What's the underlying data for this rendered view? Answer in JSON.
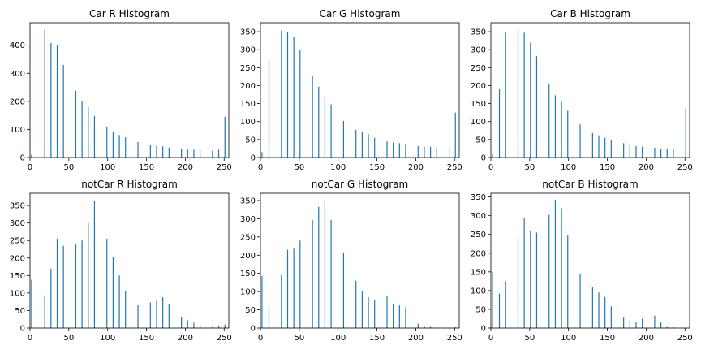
{
  "figure": {
    "bar_color": "#1f77b4",
    "axis_color": "#000000",
    "background": "#ffffff"
  },
  "chart_data": [
    {
      "type": "bar",
      "title": "Car R Histogram",
      "xlabel": "",
      "ylabel": "",
      "xlim": [
        0,
        256
      ],
      "ylim": [
        0,
        480
      ],
      "xticks": [
        0,
        50,
        100,
        150,
        200,
        250
      ],
      "yticks": [
        0,
        100,
        200,
        300,
        400
      ],
      "grid": false,
      "x": [
        2,
        19,
        27,
        35,
        43,
        59,
        67,
        75,
        83,
        99,
        107,
        115,
        123,
        139,
        155,
        163,
        171,
        179,
        195,
        203,
        211,
        219,
        235,
        243,
        251
      ],
      "values": [
        10,
        455,
        408,
        400,
        330,
        237,
        200,
        180,
        148,
        110,
        90,
        80,
        72,
        55,
        45,
        42,
        40,
        35,
        32,
        30,
        28,
        27,
        25,
        28,
        145
      ]
    },
    {
      "type": "bar",
      "title": "Car G Histogram",
      "xlabel": "",
      "ylabel": "",
      "xlim": [
        0,
        256
      ],
      "ylim": [
        0,
        375
      ],
      "xticks": [
        0,
        50,
        100,
        150,
        200,
        250
      ],
      "yticks": [
        0,
        50,
        100,
        150,
        200,
        250,
        300,
        350
      ],
      "grid": false,
      "x": [
        2,
        11,
        27,
        35,
        43,
        51,
        67,
        75,
        83,
        91,
        107,
        123,
        131,
        139,
        147,
        163,
        171,
        179,
        187,
        203,
        211,
        219,
        227,
        243,
        251
      ],
      "values": [
        15,
        273,
        353,
        350,
        335,
        300,
        227,
        197,
        167,
        148,
        102,
        77,
        70,
        65,
        55,
        45,
        42,
        40,
        38,
        32,
        30,
        30,
        28,
        28,
        125
      ]
    },
    {
      "type": "bar",
      "title": "Car B Histogram",
      "xlabel": "",
      "ylabel": "",
      "xlim": [
        0,
        256
      ],
      "ylim": [
        0,
        375
      ],
      "xticks": [
        0,
        50,
        100,
        150,
        200,
        250
      ],
      "yticks": [
        0,
        50,
        100,
        150,
        200,
        250,
        300,
        350
      ],
      "grid": false,
      "x": [
        2,
        11,
        19,
        35,
        43,
        51,
        59,
        75,
        83,
        91,
        99,
        115,
        131,
        139,
        147,
        155,
        171,
        179,
        187,
        195,
        211,
        219,
        227,
        235,
        251
      ],
      "values": [
        8,
        190,
        347,
        357,
        347,
        320,
        282,
        203,
        173,
        155,
        130,
        92,
        68,
        62,
        55,
        50,
        40,
        35,
        32,
        30,
        27,
        25,
        25,
        25,
        137
      ]
    },
    {
      "type": "bar",
      "title": "notCar R Histogram",
      "xlabel": "",
      "ylabel": "",
      "xlim": [
        0,
        256
      ],
      "ylim": [
        0,
        385
      ],
      "xticks": [
        0,
        50,
        100,
        150,
        200,
        250
      ],
      "yticks": [
        0,
        50,
        100,
        150,
        200,
        250,
        300,
        350
      ],
      "grid": false,
      "x": [
        2,
        19,
        27,
        35,
        43,
        59,
        67,
        75,
        83,
        99,
        107,
        115,
        123,
        139,
        155,
        163,
        171,
        179,
        195,
        203,
        211,
        219,
        235,
        243,
        251
      ],
      "values": [
        138,
        93,
        170,
        255,
        235,
        240,
        250,
        300,
        363,
        255,
        203,
        150,
        105,
        65,
        73,
        78,
        88,
        67,
        32,
        22,
        15,
        10,
        3,
        5,
        10
      ]
    },
    {
      "type": "bar",
      "title": "notCar G Histogram",
      "xlabel": "",
      "ylabel": "",
      "xlim": [
        0,
        256
      ],
      "ylim": [
        0,
        370
      ],
      "xticks": [
        0,
        50,
        100,
        150,
        200,
        250
      ],
      "yticks": [
        0,
        50,
        100,
        150,
        200,
        250,
        300,
        350
      ],
      "grid": false,
      "x": [
        2,
        11,
        27,
        35,
        43,
        51,
        67,
        75,
        83,
        91,
        107,
        123,
        131,
        139,
        147,
        163,
        171,
        179,
        187,
        203,
        211,
        219,
        227,
        243,
        251
      ],
      "values": [
        143,
        60,
        145,
        215,
        218,
        240,
        297,
        333,
        352,
        297,
        207,
        130,
        100,
        85,
        77,
        88,
        67,
        62,
        57,
        12,
        5,
        3,
        2,
        1,
        2
      ]
    },
    {
      "type": "bar",
      "title": "notCar B Histogram",
      "xlabel": "",
      "ylabel": "",
      "xlim": [
        0,
        256
      ],
      "ylim": [
        0,
        360
      ],
      "xticks": [
        0,
        50,
        100,
        150,
        200,
        250
      ],
      "yticks": [
        0,
        50,
        100,
        150,
        200,
        250,
        300,
        350
      ],
      "grid": false,
      "x": [
        2,
        11,
        19,
        35,
        43,
        51,
        59,
        75,
        83,
        91,
        99,
        115,
        131,
        139,
        147,
        155,
        171,
        179,
        187,
        195,
        211,
        219,
        227,
        235,
        251
      ],
      "values": [
        150,
        92,
        125,
        240,
        295,
        260,
        255,
        302,
        343,
        320,
        247,
        145,
        110,
        95,
        83,
        58,
        28,
        20,
        17,
        25,
        33,
        15,
        3,
        2,
        1
      ]
    }
  ]
}
